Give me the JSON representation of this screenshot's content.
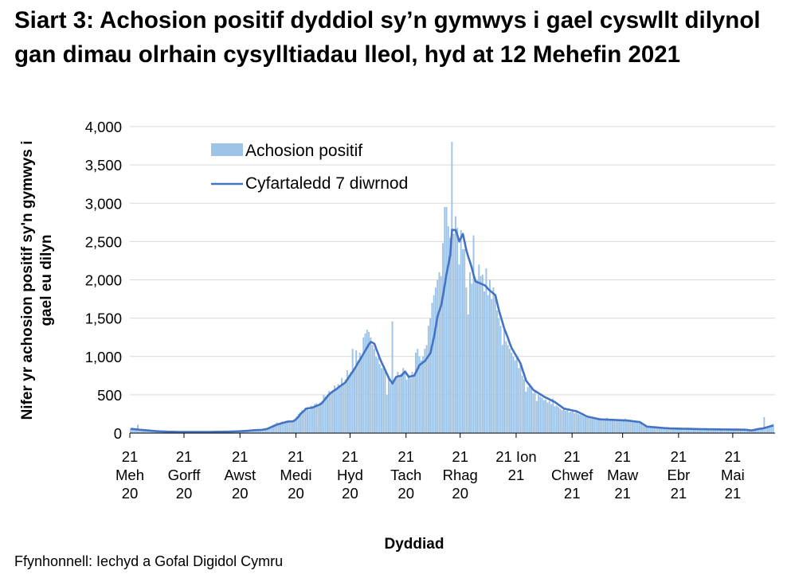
{
  "title": "Siart 3: Achosion positif dyddiol sy’n gymwys i gael cyswllt dilynol gan dimau olrhain cysylltiadau lleol, hyd at 12 Mehefin 2021",
  "source": "Ffynhonnell: Iechyd a Gofal Digidol Cymru",
  "colors": {
    "bars": "#9dc3e6",
    "line": "#4472c4",
    "grid": "#d9d9d9"
  },
  "chart_data": {
    "type": "bar+line",
    "title": "Siart 3: Achosion positif dyddiol sy’n gymwys i gael cyswllt dilynol gan dimau olrhain cysylltiadau lleol, hyd at 12 Mehefin 2021",
    "xlabel": "Dyddiad",
    "ylabel": "Nifer yr achosion positif sy'n gymwys i gael eu dilyn",
    "ylim": [
      0,
      4000
    ],
    "yticks": [
      "0",
      "500",
      "1,000",
      "1,500",
      "2,000",
      "2,500",
      "3,000",
      "3,500",
      "4,000"
    ],
    "grid": true,
    "legend_position": "top-left",
    "x_start": "2020-06-21",
    "x_end": "2021-06-12",
    "xticks": [
      {
        "date": "2020-06-21",
        "lines": [
          "21",
          "Meh",
          "20"
        ]
      },
      {
        "date": "2020-07-21",
        "lines": [
          "21",
          "Gorff",
          "20"
        ]
      },
      {
        "date": "2020-08-21",
        "lines": [
          "21",
          "Awst",
          "20"
        ]
      },
      {
        "date": "2020-09-21",
        "lines": [
          "21",
          "Medi",
          "20"
        ]
      },
      {
        "date": "2020-10-21",
        "lines": [
          "21",
          "Hyd",
          "20"
        ]
      },
      {
        "date": "2020-11-21",
        "lines": [
          "21",
          "Tach",
          "20"
        ]
      },
      {
        "date": "2020-12-21",
        "lines": [
          "21",
          "Rhag",
          "20"
        ]
      },
      {
        "date": "2021-01-21",
        "lines": [
          "21 Ion",
          "21",
          ""
        ]
      },
      {
        "date": "2021-02-21",
        "lines": [
          "21",
          "Chwef",
          "21"
        ]
      },
      {
        "date": "2021-03-21",
        "lines": [
          "21",
          "Maw",
          "21"
        ]
      },
      {
        "date": "2021-04-21",
        "lines": [
          "21",
          "Ebr",
          "21"
        ]
      },
      {
        "date": "2021-05-21",
        "lines": [
          "21",
          "Mai",
          "21"
        ]
      }
    ],
    "series": [
      {
        "name": "Achosion positif",
        "type": "bar",
        "values": [
          60,
          70,
          45,
          40,
          110,
          50,
          40,
          45,
          35,
          30,
          40,
          28,
          25,
          30,
          25,
          20,
          28,
          22,
          18,
          25,
          15,
          20,
          15,
          18,
          22,
          14,
          16,
          12,
          15,
          18,
          12,
          14,
          20,
          15,
          13,
          12,
          16,
          18,
          14,
          15,
          17,
          13,
          14,
          18,
          15,
          16,
          20,
          15,
          18,
          17,
          22,
          16,
          20,
          18,
          21,
          19,
          22,
          18,
          25,
          20,
          28,
          26,
          30,
          25,
          32,
          30,
          38,
          35,
          40,
          42,
          38,
          45,
          40,
          50,
          55,
          60,
          70,
          85,
          95,
          110,
          120,
          140,
          130,
          135,
          150,
          145,
          160,
          140,
          170,
          165,
          160,
          180,
          220,
          250,
          270,
          300,
          280,
          330,
          340,
          300,
          360,
          350,
          380,
          390,
          370,
          400,
          420,
          500,
          480,
          500,
          550,
          530,
          560,
          620,
          580,
          640,
          600,
          720,
          650,
          700,
          820,
          760,
          800,
          1100,
          850,
          1080,
          950,
          1050,
          1000,
          1250,
          1300,
          1350,
          1320,
          1250,
          1150,
          1100,
          1000,
          980,
          900,
          850,
          850,
          800,
          500,
          750,
          650,
          1460,
          700,
          720,
          800,
          750,
          780,
          850,
          820,
          700,
          760,
          720,
          800,
          750,
          1050,
          1100,
          1000,
          950,
          1000,
          1100,
          1150,
          1400,
          1500,
          1700,
          1800,
          1900,
          2000,
          2100,
          2050,
          2480,
          2950,
          2950,
          2700,
          2550,
          3800,
          2600,
          2830,
          2680,
          2200,
          2650,
          2400,
          2400,
          1900,
          1550,
          2100,
          1950,
          2580,
          2000,
          2000,
          2200,
          2050,
          2070,
          1850,
          2150,
          1800,
          2000,
          1750,
          1900,
          1800,
          1600,
          1500,
          1400,
          1150,
          1350,
          1200,
          1150,
          1100,
          1050,
          1000,
          950,
          1000,
          850,
          900,
          750,
          700,
          540,
          600,
          650,
          580,
          520,
          550,
          420,
          500,
          480,
          460,
          430,
          440,
          400,
          420,
          380,
          450,
          350,
          360,
          340,
          320,
          300,
          330,
          290,
          310,
          270,
          280,
          300,
          260,
          280,
          250,
          240,
          230,
          220,
          210,
          200,
          220,
          190,
          210,
          200,
          180,
          190,
          170,
          180,
          175,
          170,
          200,
          165,
          170,
          180,
          160,
          175,
          165,
          170,
          160,
          160,
          190,
          170,
          150,
          160,
          145,
          150,
          140,
          150,
          130,
          120,
          100,
          90,
          80,
          85,
          80,
          75,
          78,
          70,
          72,
          68,
          65,
          70,
          60,
          62,
          65,
          55,
          60,
          58,
          62,
          55,
          60,
          55,
          58,
          52,
          55,
          60,
          50,
          56,
          52,
          55,
          50,
          52,
          55,
          48,
          50,
          52,
          48,
          50,
          48,
          52,
          47,
          50,
          48,
          46,
          49,
          45,
          50,
          46,
          48,
          44,
          47,
          45,
          45,
          48,
          44,
          46,
          42,
          45,
          38,
          35,
          32,
          45,
          50,
          55,
          60,
          55,
          65,
          210,
          80,
          85,
          90,
          110,
          120
        ]
      },
      {
        "name": "Cyfartaledd 7 diwrnod",
        "type": "line",
        "values": [
          55,
          53,
          51,
          49,
          47,
          44,
          42,
          40,
          38,
          36,
          34,
          32,
          30,
          28,
          25,
          24,
          23,
          22,
          21,
          20,
          19,
          18,
          18,
          17,
          17,
          16,
          16,
          15,
          15,
          15,
          15,
          15,
          15,
          15,
          15,
          15,
          15,
          15,
          15,
          15,
          15,
          15,
          15,
          15,
          15,
          16,
          16,
          17,
          17,
          18,
          18,
          18,
          19,
          19,
          19,
          20,
          20,
          21,
          22,
          23,
          24,
          26,
          27,
          28,
          29,
          31,
          33,
          35,
          37,
          39,
          40,
          41,
          42,
          44,
          48,
          52,
          59,
          70,
          80,
          90,
          100,
          111,
          118,
          125,
          132,
          138,
          144,
          150,
          152,
          153,
          155,
          170,
          190,
          215,
          249,
          270,
          290,
          318,
          322,
          326,
          330,
          336,
          346,
          356,
          366,
          376,
          394,
          423,
          452,
          480,
          509,
          527,
          545,
          560,
          575,
          595,
          612,
          630,
          645,
          664,
          700,
          735,
          770,
          803,
          840,
          880,
          920,
          958,
          1000,
          1040,
          1080,
          1120,
          1160,
          1190,
          1180,
          1165,
          1100,
          1040,
          975,
          920,
          872,
          820,
          770,
          716,
          680,
          647,
          690,
          733,
          740,
          745,
          750,
          780,
          803,
          770,
          733,
          740,
          745,
          750,
          795,
          840,
          890,
          905,
          925,
          941,
          975,
          1010,
          1045,
          1150,
          1253,
          1390,
          1530,
          1600,
          1668,
          1800,
          1940,
          2083,
          2200,
          2325,
          2654,
          2650,
          2650,
          2580,
          2500,
          2550,
          2600,
          2490,
          2380,
          2300,
          2230,
          2150,
          2060,
          1980,
          1970,
          1960,
          1950,
          1940,
          1930,
          1910,
          1880,
          1860,
          1840,
          1820,
          1800,
          1700,
          1600,
          1520,
          1440,
          1360,
          1300,
          1240,
          1170,
          1110,
          1070,
          1030,
          990,
          950,
          905,
          830,
          760,
          685,
          655,
          625,
          595,
          565,
          550,
          535,
          520,
          505,
          490,
          475,
          463,
          452,
          440,
          428,
          416,
          405,
          388,
          371,
          354,
          337,
          320,
          315,
          310,
          305,
          300,
          295,
          290,
          285,
          273,
          262,
          250,
          238,
          226,
          215,
          210,
          205,
          200,
          195,
          190,
          185,
          180,
          179,
          178,
          177,
          176,
          175,
          174,
          173,
          172,
          171,
          170,
          169,
          168,
          167,
          166,
          165,
          162,
          159,
          156,
          153,
          150,
          148,
          145,
          130,
          115,
          100,
          85,
          83,
          81,
          79,
          77,
          75,
          73,
          71,
          69,
          67,
          65,
          64,
          63,
          61,
          60,
          60,
          59,
          59,
          58,
          58,
          57,
          57,
          56,
          56,
          55,
          55,
          54,
          54,
          53,
          53,
          52,
          52,
          51,
          51,
          50,
          50,
          50,
          50,
          49,
          49,
          49,
          48,
          48,
          48,
          47,
          47,
          47,
          46,
          46,
          46,
          46,
          46,
          45,
          45,
          45,
          44,
          40,
          37,
          35,
          40,
          45,
          50,
          55,
          58,
          60,
          67,
          73,
          80,
          87,
          94,
          100
        ]
      }
    ]
  }
}
